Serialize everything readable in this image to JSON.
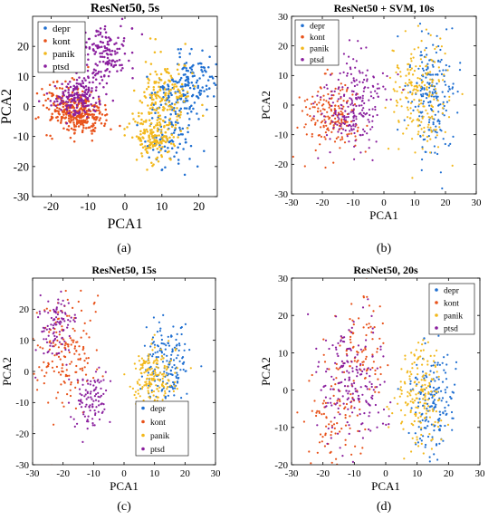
{
  "colors": {
    "depr": "#1f6fd1",
    "kont": "#e8521a",
    "panik": "#f2b81c",
    "ptsd": "#8a1f9e"
  },
  "chart_data": [
    {
      "type": "scatter",
      "panel": "a",
      "caption": "(a)",
      "title": "ResNet50, 5s",
      "xlabel": "PCA1",
      "ylabel": "PCA2",
      "xlim": [
        -25,
        25
      ],
      "ylim": [
        -30,
        30
      ],
      "xticks": [
        -20,
        -10,
        0,
        10,
        20
      ],
      "yticks": [
        -30,
        -20,
        -10,
        0,
        10,
        20
      ],
      "legend_position": "top-left",
      "series": [
        {
          "name": "depr",
          "color_key": "depr",
          "seed": 11,
          "count": 260,
          "clusters": [
            [
              19,
              10,
              3,
              4
            ],
            [
              12,
              -10,
              3.5,
              5
            ],
            [
              14,
              3,
              3,
              4
            ]
          ]
        },
        {
          "name": "kont",
          "color_key": "kont",
          "seed": 23,
          "count": 320,
          "clusters": [
            [
              -15,
              0,
              4,
              4
            ],
            [
              -12,
              -4,
              3,
              3
            ]
          ]
        },
        {
          "name": "panik",
          "color_key": "panik",
          "seed": 37,
          "count": 320,
          "clusters": [
            [
              8,
              -10,
              3,
              4
            ],
            [
              11,
              4,
              3.5,
              6
            ]
          ]
        },
        {
          "name": "ptsd",
          "color_key": "ptsd",
          "seed": 53,
          "count": 320,
          "clusters": [
            [
              -13,
              3,
              3,
              3
            ],
            [
              -6,
              17,
              3.5,
              5
            ]
          ]
        }
      ]
    },
    {
      "type": "scatter",
      "panel": "b",
      "caption": "(b)",
      "title": "ResNet50 + SVM, 10s",
      "xlabel": "PCA1",
      "ylabel": "PCA2",
      "xlim": [
        -30,
        30
      ],
      "ylim": [
        -30,
        30
      ],
      "xticks": [
        -30,
        -20,
        -10,
        0,
        10,
        20,
        30
      ],
      "yticks": [
        -30,
        -20,
        -10,
        0,
        10,
        20,
        30
      ],
      "legend_position": "top-left",
      "series": [
        {
          "name": "depr",
          "color_key": "depr",
          "seed": 61,
          "count": 200,
          "clusters": [
            [
              15,
              3,
              4,
              10
            ]
          ]
        },
        {
          "name": "kont",
          "color_key": "kont",
          "seed": 71,
          "count": 180,
          "clusters": [
            [
              -17,
              -3,
              5,
              6
            ]
          ]
        },
        {
          "name": "panik",
          "color_key": "panik",
          "seed": 83,
          "count": 200,
          "clusters": [
            [
              11,
              4,
              5,
              10
            ]
          ]
        },
        {
          "name": "ptsd",
          "color_key": "ptsd",
          "seed": 97,
          "count": 220,
          "clusters": [
            [
              -10,
              0,
              5,
              8
            ]
          ]
        }
      ]
    },
    {
      "type": "scatter",
      "panel": "c",
      "caption": "(c)",
      "title": "ResNet50, 15s",
      "xlabel": "PCA1",
      "ylabel": "PCA2",
      "xlim": [
        -30,
        30
      ],
      "ylim": [
        -30,
        30
      ],
      "xticks": [
        -30,
        -20,
        -10,
        0,
        10,
        20,
        30
      ],
      "yticks": [
        -30,
        -20,
        -10,
        0,
        10,
        20
      ],
      "legend_position": "bottom-right",
      "series": [
        {
          "name": "depr",
          "color_key": "depr",
          "seed": 101,
          "count": 180,
          "clusters": [
            [
              14,
              2,
              3.5,
              7
            ]
          ]
        },
        {
          "name": "kont",
          "color_key": "kont",
          "seed": 113,
          "count": 170,
          "clusters": [
            [
              -19,
              6,
              5,
              9
            ]
          ]
        },
        {
          "name": "panik",
          "color_key": "panik",
          "seed": 127,
          "count": 180,
          "clusters": [
            [
              10,
              -1,
              4,
              5
            ]
          ]
        },
        {
          "name": "ptsd",
          "color_key": "ptsd",
          "seed": 139,
          "count": 200,
          "clusters": [
            [
              -11,
              -9,
              3.5,
              5
            ],
            [
              -22,
              15,
              3,
              5
            ]
          ]
        }
      ]
    },
    {
      "type": "scatter",
      "panel": "d",
      "caption": "(d)",
      "title": "ResNet50, 20s",
      "xlabel": "PCA1",
      "ylabel": "PCA2",
      "xlim": [
        -30,
        30
      ],
      "ylim": [
        -20,
        30
      ],
      "xticks": [
        -30,
        -20,
        -10,
        0,
        10,
        20,
        30
      ],
      "yticks": [
        -20,
        -10,
        0,
        10,
        20,
        30
      ],
      "legend_position": "top-right",
      "series": [
        {
          "name": "depr",
          "color_key": "depr",
          "seed": 149,
          "count": 170,
          "clusters": [
            [
              15,
              -4,
              3.5,
              7
            ]
          ]
        },
        {
          "name": "kont",
          "color_key": "kont",
          "seed": 157,
          "count": 180,
          "clusters": [
            [
              -17,
              -7,
              5,
              7
            ],
            [
              -8,
              10,
              4,
              7
            ]
          ]
        },
        {
          "name": "panik",
          "color_key": "panik",
          "seed": 163,
          "count": 170,
          "clusters": [
            [
              11,
              -1,
              4,
              7
            ]
          ]
        },
        {
          "name": "ptsd",
          "color_key": "ptsd",
          "seed": 173,
          "count": 190,
          "clusters": [
            [
              -10,
              2,
              6,
              9
            ]
          ]
        }
      ]
    }
  ]
}
